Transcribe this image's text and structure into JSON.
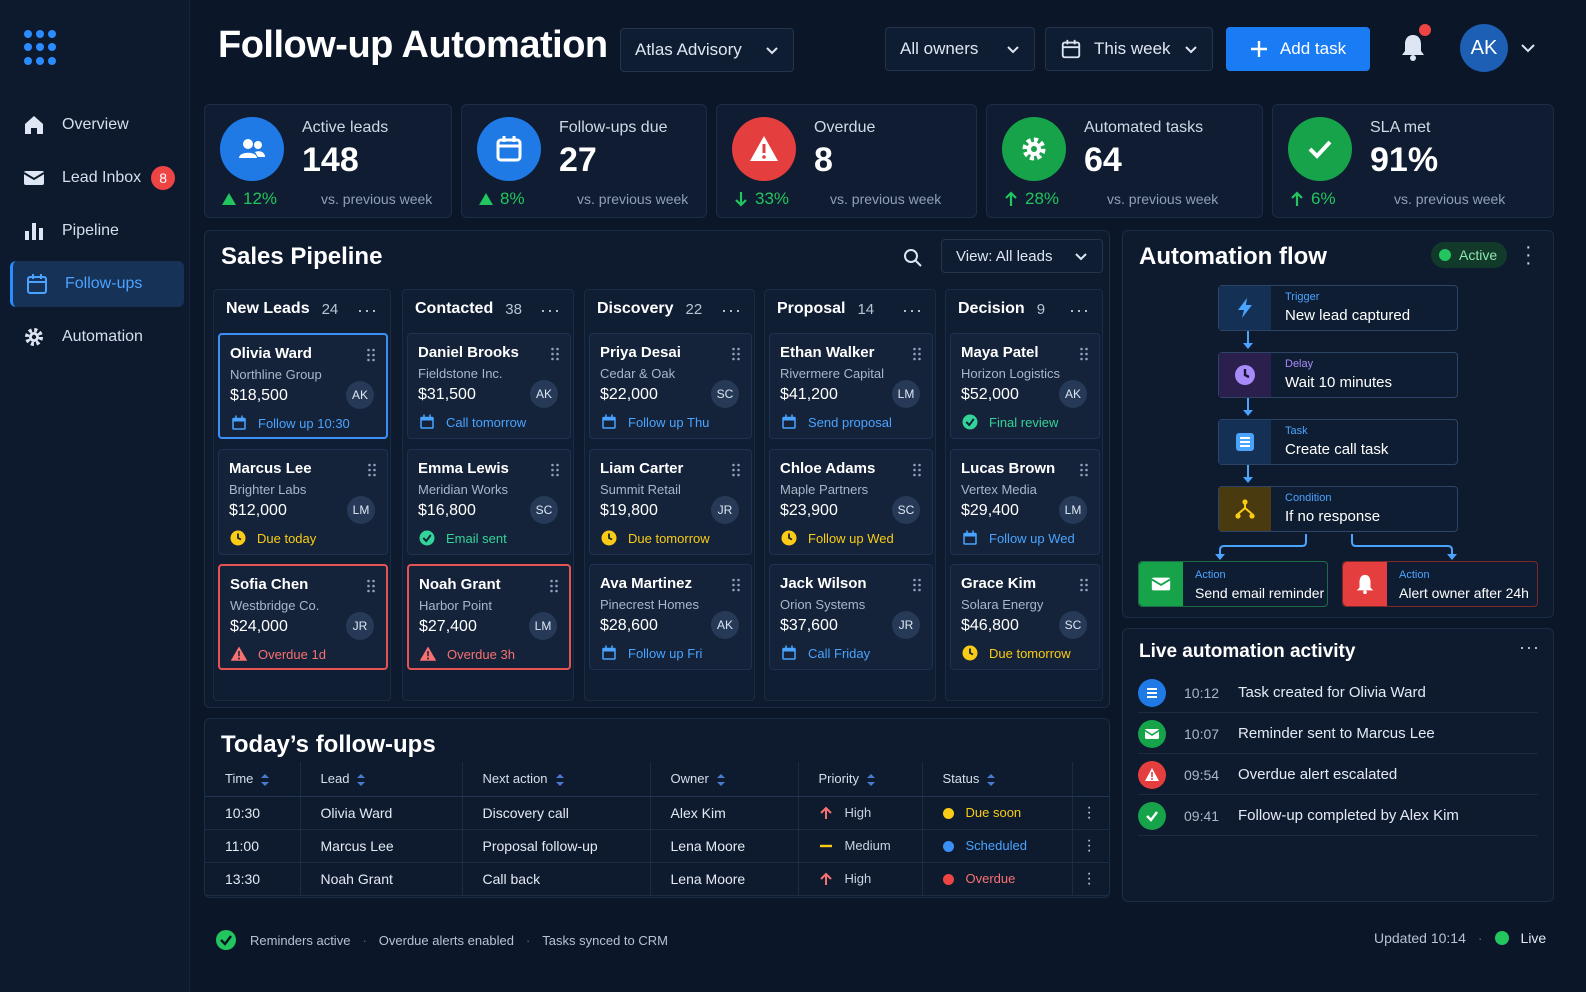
{
  "sidebar": {
    "items": [
      {
        "label": "Overview",
        "icon": "home-icon"
      },
      {
        "label": "Lead Inbox",
        "icon": "mail-icon",
        "badge": "8"
      },
      {
        "label": "Pipeline",
        "icon": "bar-chart-icon"
      },
      {
        "label": "Follow-ups",
        "icon": "calendar-icon",
        "active": true
      },
      {
        "label": "Automation",
        "icon": "gear-icon"
      }
    ]
  },
  "header": {
    "title": "Follow-up Automation",
    "account": "Atlas Advisory",
    "owner_filter": "All owners",
    "date_filter": "This week",
    "add_task": "Add task",
    "avatar": "AK"
  },
  "kpis": [
    {
      "label": "Active leads",
      "value": "148",
      "delta": "12%",
      "vs": "vs. previous week",
      "color": "#1f7ae6",
      "icon": "users-icon",
      "trend": "up"
    },
    {
      "label": "Follow-ups due",
      "value": "27",
      "delta": "8%",
      "vs": "vs. previous week",
      "color": "#1f7ae6",
      "icon": "calendar-icon",
      "trend": "up"
    },
    {
      "label": "Overdue",
      "value": "8",
      "delta": "33%",
      "vs": "vs. previous week",
      "color": "#e53e3e",
      "icon": "warning-icon",
      "trend": "down"
    },
    {
      "label": "Automated tasks",
      "value": "64",
      "delta": "28%",
      "vs": "vs. previous week",
      "color": "#16a34a",
      "icon": "gear-icon",
      "trend": "up"
    },
    {
      "label": "SLA met",
      "value": "91%",
      "delta": "6%",
      "vs": "vs. previous week",
      "color": "#16a34a",
      "icon": "check-icon",
      "trend": "up"
    }
  ],
  "pipeline": {
    "title": "Sales Pipeline",
    "view": "View: All leads",
    "columns": [
      {
        "name": "New Leads",
        "count": "24",
        "cards": [
          {
            "name": "Olivia Ward",
            "company": "Northline Group",
            "amount": "$18,500",
            "owner": "AK",
            "status": "Follow up 10:30",
            "kind": "calendar",
            "variant": "selected"
          },
          {
            "name": "Marcus Lee",
            "company": "Brighter Labs",
            "amount": "$12,000",
            "owner": "LM",
            "status": "Due today",
            "kind": "clock",
            "variant": ""
          },
          {
            "name": "Sofia Chen",
            "company": "Westbridge Co.",
            "amount": "$24,000",
            "owner": "JR",
            "status": "Overdue 1d",
            "kind": "warning",
            "variant": "overdue"
          }
        ]
      },
      {
        "name": "Contacted",
        "count": "38",
        "cards": [
          {
            "name": "Daniel Brooks",
            "company": "Fieldstone Inc.",
            "amount": "$31,500",
            "owner": "AK",
            "status": "Call tomorrow",
            "kind": "calendar",
            "variant": ""
          },
          {
            "name": "Emma Lewis",
            "company": "Meridian Works",
            "amount": "$16,800",
            "owner": "SC",
            "status": "Email sent",
            "kind": "check",
            "variant": ""
          },
          {
            "name": "Noah Grant",
            "company": "Harbor Point",
            "amount": "$27,400",
            "owner": "LM",
            "status": "Overdue 3h",
            "kind": "warning",
            "variant": "overdue"
          }
        ]
      },
      {
        "name": "Discovery",
        "count": "22",
        "cards": [
          {
            "name": "Priya Desai",
            "company": "Cedar & Oak",
            "amount": "$22,000",
            "owner": "SC",
            "status": "Follow up Thu",
            "kind": "calendar",
            "variant": ""
          },
          {
            "name": "Liam Carter",
            "company": "Summit Retail",
            "amount": "$19,800",
            "owner": "JR",
            "status": "Due tomorrow",
            "kind": "clock",
            "variant": ""
          },
          {
            "name": "Ava Martinez",
            "company": "Pinecrest Homes",
            "amount": "$28,600",
            "owner": "AK",
            "status": "Follow up Fri",
            "kind": "calendar",
            "variant": ""
          }
        ]
      },
      {
        "name": "Proposal",
        "count": "14",
        "cards": [
          {
            "name": "Ethan Walker",
            "company": "Rivermere Capital",
            "amount": "$41,200",
            "owner": "LM",
            "status": "Send proposal",
            "kind": "calendar",
            "variant": ""
          },
          {
            "name": "Chloe Adams",
            "company": "Maple Partners",
            "amount": "$23,900",
            "owner": "SC",
            "status": "Follow up Wed",
            "kind": "clock",
            "variant": ""
          },
          {
            "name": "Jack Wilson",
            "company": "Orion Systems",
            "amount": "$37,600",
            "owner": "JR",
            "status": "Call Friday",
            "kind": "calendar",
            "variant": ""
          }
        ]
      },
      {
        "name": "Decision",
        "count": "9",
        "cards": [
          {
            "name": "Maya Patel",
            "company": "Horizon Logistics",
            "amount": "$52,000",
            "owner": "AK",
            "status": "Final review",
            "kind": "check",
            "variant": ""
          },
          {
            "name": "Lucas Brown",
            "company": "Vertex Media",
            "amount": "$29,400",
            "owner": "LM",
            "status": "Follow up Wed",
            "kind": "calendar",
            "variant": ""
          },
          {
            "name": "Grace Kim",
            "company": "Solara Energy",
            "amount": "$46,800",
            "owner": "SC",
            "status": "Due tomorrow",
            "kind": "clock",
            "variant": ""
          }
        ]
      }
    ]
  },
  "flow": {
    "title": "Automation flow",
    "status": "Active",
    "nodes": [
      {
        "type": "Trigger",
        "label": "New lead captured",
        "icon": "lightning-icon",
        "color": "#4aa3ff"
      },
      {
        "type": "Delay",
        "label": "Wait 10 minutes",
        "icon": "clock-icon",
        "color": "#a78bfa"
      },
      {
        "type": "Task",
        "label": "Create call task",
        "icon": "list-icon",
        "color": "#4aa3ff"
      },
      {
        "type": "Condition",
        "label": "If no response",
        "icon": "branch-icon",
        "color": "#facc15"
      }
    ],
    "actions": [
      {
        "type": "Action",
        "label": "Send email reminder",
        "icon": "mail-icon",
        "color": "#16a34a"
      },
      {
        "type": "Action",
        "label": "Alert owner after 24h",
        "icon": "bell-icon",
        "color": "#e53e3e"
      }
    ]
  },
  "activity": {
    "title": "Live automation activity",
    "items": [
      {
        "time": "10:12",
        "text": "Task created for Olivia Ward",
        "icon": "list-icon",
        "color": "#1f7ae6"
      },
      {
        "time": "10:07",
        "text": "Reminder sent to Marcus Lee",
        "icon": "mail-icon",
        "color": "#16a34a"
      },
      {
        "time": "09:54",
        "text": "Overdue alert escalated",
        "icon": "warning-icon",
        "color": "#e53e3e"
      },
      {
        "time": "09:41",
        "text": "Follow-up completed by Alex Kim",
        "icon": "check-icon",
        "color": "#16a34a"
      }
    ]
  },
  "today": {
    "title": "Today’s follow-ups",
    "headers": [
      "Time",
      "Lead",
      "Next action",
      "Owner",
      "Priority",
      "Status"
    ],
    "rows": [
      {
        "time": "10:30",
        "lead": "Olivia Ward",
        "action": "Discovery call",
        "owner": "Alex Kim",
        "priority": "High",
        "status": "Due soon",
        "status_color": "#facc15"
      },
      {
        "time": "11:00",
        "lead": "Marcus Lee",
        "action": "Proposal follow-up",
        "owner": "Lena Moore",
        "priority": "Medium",
        "status": "Scheduled",
        "status_color": "#3b8ff7"
      },
      {
        "time": "13:30",
        "lead": "Noah Grant",
        "action": "Call back",
        "owner": "Lena Moore",
        "priority": "High",
        "status": "Overdue",
        "status_color": "#ef4444"
      }
    ]
  },
  "footer": {
    "items": [
      "Reminders active",
      "Overdue alerts enabled",
      "Tasks synced to CRM"
    ],
    "updated": "Updated 10:14",
    "live": "Live"
  }
}
